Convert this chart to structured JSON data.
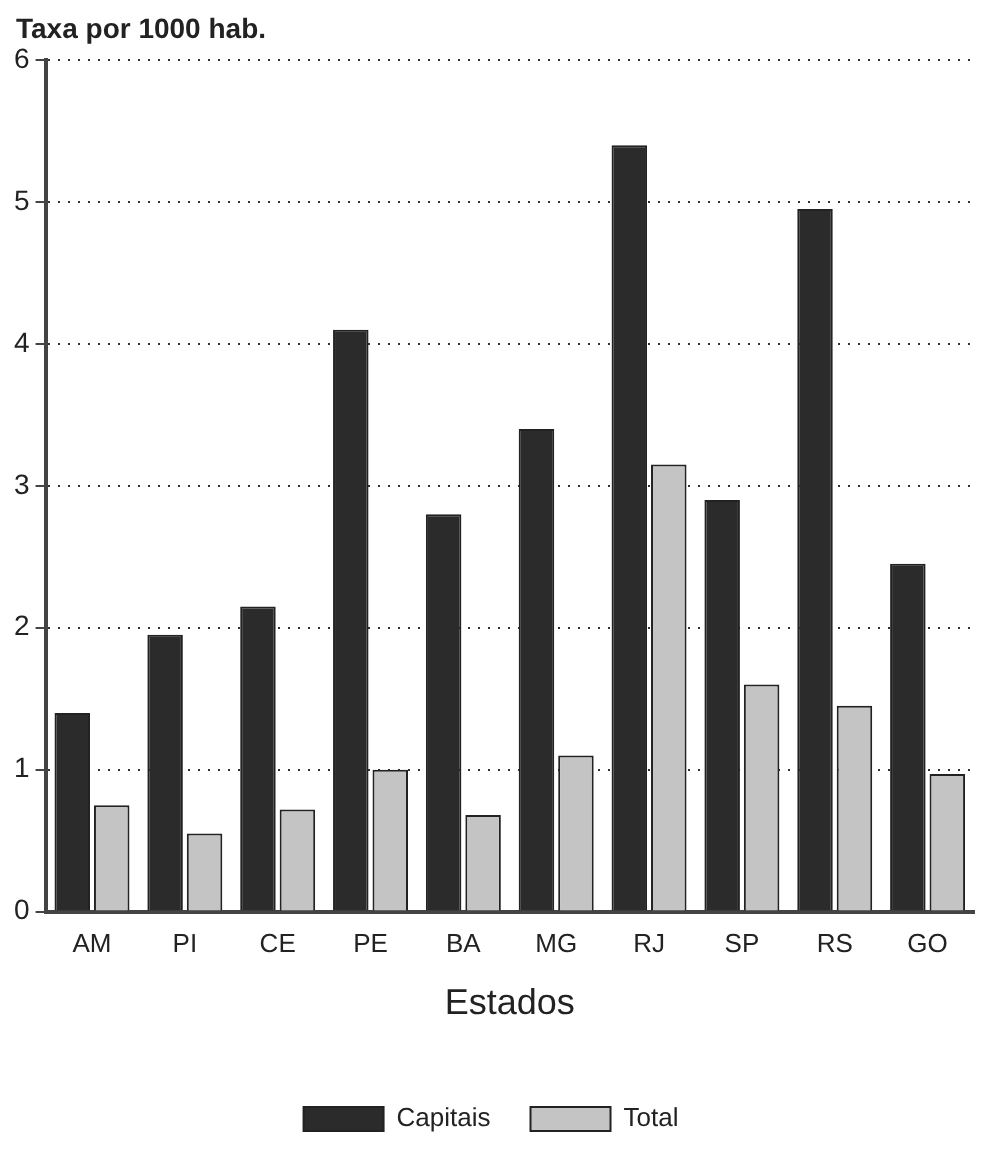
{
  "chart_data": {
    "type": "bar",
    "ylabel": "Taxa por 1000 hab.",
    "xlabel": "Estados",
    "categories": [
      "AM",
      "PI",
      "CE",
      "PE",
      "BA",
      "MG",
      "RJ",
      "SP",
      "RS",
      "GO"
    ],
    "series": [
      {
        "name": "Capitais",
        "color": "#2b2b2b",
        "values": [
          1.4,
          1.95,
          2.15,
          4.1,
          2.8,
          3.4,
          5.4,
          2.9,
          4.95,
          2.45
        ]
      },
      {
        "name": "Total",
        "color": "#c4c4c4",
        "values": [
          0.75,
          0.55,
          0.72,
          1.0,
          0.68,
          1.1,
          3.15,
          1.6,
          1.45,
          0.97
        ]
      }
    ],
    "ylim": [
      0,
      6
    ],
    "yticks": [
      0,
      1,
      2,
      3,
      4,
      5,
      6
    ],
    "grid": "y",
    "line_style": "dotted",
    "legend": "bottom"
  }
}
